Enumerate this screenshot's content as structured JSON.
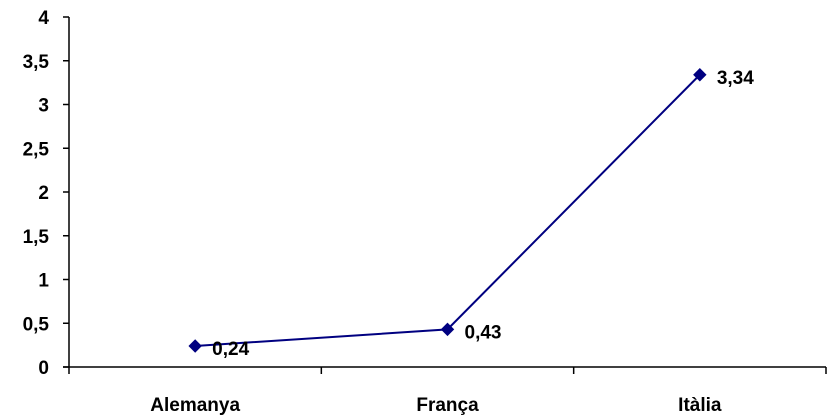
{
  "chart_data": {
    "type": "line",
    "categories": [
      "Alemanya",
      "França",
      "Itàlia"
    ],
    "values": [
      0.24,
      0.43,
      3.34
    ],
    "data_labels": [
      "0,24",
      "0,43",
      "3,34"
    ],
    "yticks": [
      {
        "value": 0,
        "label": "0"
      },
      {
        "value": 0.5,
        "label": "0,5"
      },
      {
        "value": 1,
        "label": "1"
      },
      {
        "value": 1.5,
        "label": "1,5"
      },
      {
        "value": 2,
        "label": "2"
      },
      {
        "value": 2.5,
        "label": "2,5"
      },
      {
        "value": 3,
        "label": "3"
      },
      {
        "value": 3.5,
        "label": "3,5"
      },
      {
        "value": 4,
        "label": "4"
      }
    ],
    "ylim": [
      0,
      4
    ],
    "grid": false,
    "legend": "none",
    "title": "",
    "xlabel": "",
    "ylabel": "",
    "line_color": "#000080",
    "marker": "diamond"
  }
}
